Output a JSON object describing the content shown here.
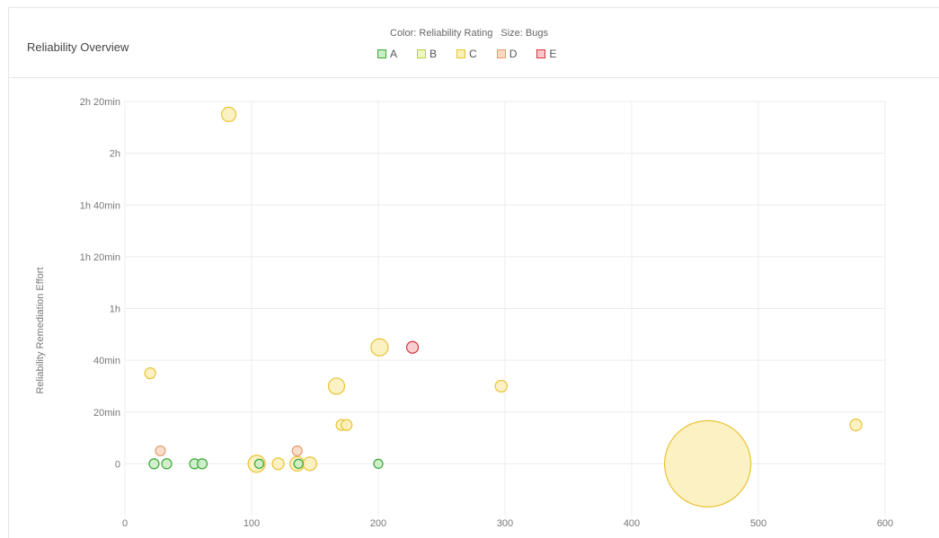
{
  "header": {
    "title": "Reliability Overview",
    "color_caption": "Color: Reliability Rating",
    "size_caption": "Size: Bugs"
  },
  "legend": [
    {
      "label": "A",
      "fill": "#c8ecc4",
      "stroke": "#3aa835"
    },
    {
      "label": "B",
      "fill": "#eef6c6",
      "stroke": "#b5cf4a"
    },
    {
      "label": "C",
      "fill": "#fbefb8",
      "stroke": "#e9c232"
    },
    {
      "label": "D",
      "fill": "#f8d9c2",
      "stroke": "#e79a6e"
    },
    {
      "label": "E",
      "fill": "#f7c6c8",
      "stroke": "#d4333f"
    }
  ],
  "chart_data": {
    "type": "scatter",
    "xlabel": "",
    "ylabel": "Reliability Remediation Effort",
    "xlim": [
      0,
      600
    ],
    "ylim_minutes": [
      -20,
      140
    ],
    "x_ticks": [
      "0",
      "100",
      "200",
      "300",
      "400",
      "500",
      "600"
    ],
    "y_ticks": [
      {
        "value": 0,
        "label": "0"
      },
      {
        "value": 20,
        "label": "20min"
      },
      {
        "value": 40,
        "label": "40min"
      },
      {
        "value": 60,
        "label": "1h"
      },
      {
        "value": 80,
        "label": "1h 20min"
      },
      {
        "value": 100,
        "label": "1h 40min"
      },
      {
        "value": 120,
        "label": "2h"
      },
      {
        "value": 140,
        "label": "2h 20min"
      }
    ],
    "grid": true,
    "points": [
      {
        "x": 82,
        "y": 135,
        "rating": "C",
        "r": 8
      },
      {
        "x": 20,
        "y": 35,
        "rating": "C",
        "r": 6
      },
      {
        "x": 28,
        "y": 5,
        "rating": "D",
        "r": 5.5
      },
      {
        "x": 23,
        "y": 0,
        "rating": "A",
        "r": 5.5
      },
      {
        "x": 33,
        "y": 0,
        "rating": "A",
        "r": 5.5
      },
      {
        "x": 55,
        "y": 0,
        "rating": "A",
        "r": 5.5
      },
      {
        "x": 61,
        "y": 0,
        "rating": "A",
        "r": 5.5
      },
      {
        "x": 104,
        "y": 0,
        "rating": "C",
        "r": 9.5
      },
      {
        "x": 106,
        "y": 0,
        "rating": "A",
        "r": 5
      },
      {
        "x": 121,
        "y": 0,
        "rating": "C",
        "r": 6.5
      },
      {
        "x": 136,
        "y": 5,
        "rating": "D",
        "r": 5.5
      },
      {
        "x": 136,
        "y": 0,
        "rating": "C",
        "r": 8
      },
      {
        "x": 137,
        "y": 0,
        "rating": "A",
        "r": 5
      },
      {
        "x": 146,
        "y": 0,
        "rating": "C",
        "r": 7.5
      },
      {
        "x": 167,
        "y": 30,
        "rating": "C",
        "r": 9
      },
      {
        "x": 171,
        "y": 15,
        "rating": "C",
        "r": 6
      },
      {
        "x": 175,
        "y": 15,
        "rating": "C",
        "r": 6
      },
      {
        "x": 200,
        "y": 0,
        "rating": "A",
        "r": 5
      },
      {
        "x": 201,
        "y": 45,
        "rating": "C",
        "r": 9.5
      },
      {
        "x": 227,
        "y": 45,
        "rating": "E",
        "r": 6.5
      },
      {
        "x": 297,
        "y": 30,
        "rating": "C",
        "r": 6.5
      },
      {
        "x": 460,
        "y": 0,
        "rating": "C",
        "r": 48
      },
      {
        "x": 577,
        "y": 15,
        "rating": "C",
        "r": 6.5
      }
    ]
  }
}
